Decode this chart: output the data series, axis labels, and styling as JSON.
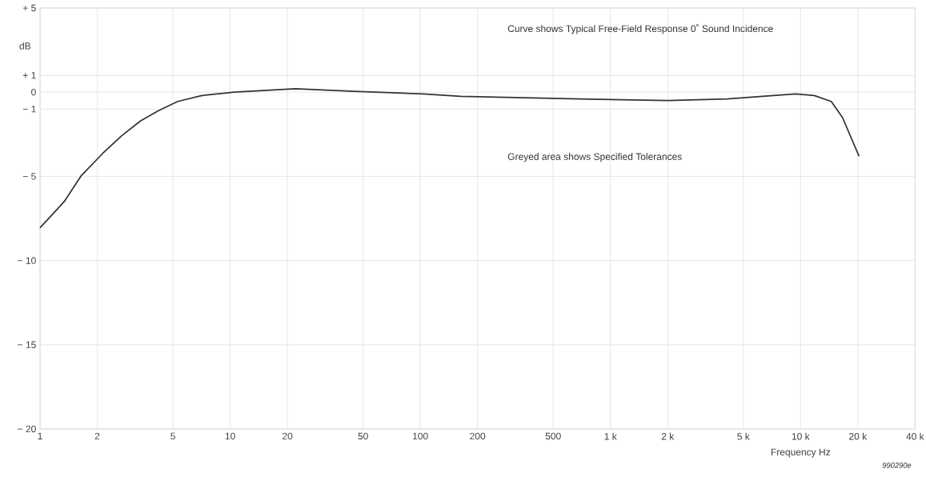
{
  "chart_data": {
    "type": "line",
    "xlabel": "Frequency Hz",
    "ylabel": "dB",
    "annotations": [
      "Curve shows Typical Free-Field Response  0˚ Sound Incidence",
      "Greyed area shows Specified Tolerances",
      "990290e"
    ],
    "log": "x",
    "grid": true,
    "marker": "none",
    "line_style": "solid",
    "xlim": [
      1,
      40000
    ],
    "ylim": [
      -20,
      5
    ],
    "xticks": [
      1,
      2,
      5,
      10,
      20,
      50,
      100,
      200,
      500,
      {
        "value": 1000,
        "label": "1 k"
      },
      {
        "value": 2000,
        "label": "2 k"
      },
      {
        "value": 5000,
        "label": "5 k"
      },
      {
        "value": 10000,
        "label": "10 k"
      },
      {
        "value": 20000,
        "label": "20 k"
      },
      {
        "value": 40000,
        "label": "40 k"
      }
    ],
    "yticks": [
      {
        "value": 5,
        "label": "+ 5"
      },
      {
        "value": 1,
        "label": "+ 1"
      },
      0,
      {
        "value": -1,
        "label": "− 1"
      },
      {
        "value": -5,
        "label": "− 5"
      },
      {
        "value": -10,
        "label": "− 10"
      },
      {
        "value": -15,
        "label": "− 15"
      },
      {
        "value": -20,
        "label": "− 20"
      }
    ],
    "series": [
      {
        "color": "#333333",
        "x": [
          1,
          1.34,
          1.65,
          2.13,
          2.68,
          3.38,
          4.2,
          5.3,
          7.1,
          10.5,
          22,
          45,
          104,
          163,
          685,
          2000,
          4100,
          6300,
          9400,
          11800,
          14500,
          16600,
          20300
        ],
        "values": [
          -8.05,
          -6.5,
          -4.95,
          -3.65,
          -2.6,
          -1.7,
          -1.1,
          -0.55,
          -0.2,
          0,
          0.2,
          0.05,
          -0.1,
          -0.25,
          -0.4,
          -0.5,
          -0.4,
          -0.25,
          -0.1,
          -0.2,
          -0.55,
          -1.5,
          -3.8
        ]
      }
    ]
  }
}
